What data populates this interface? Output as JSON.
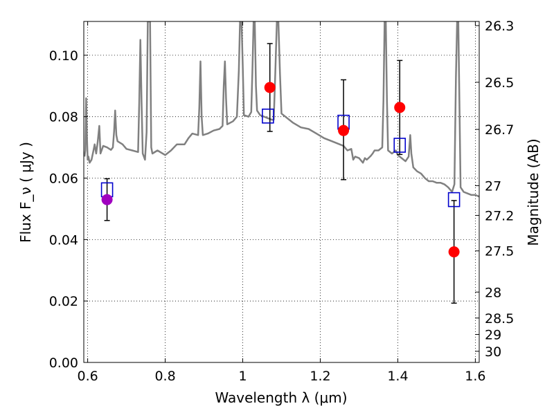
{
  "chart_data": {
    "type": "scatter",
    "xlabel": "Wavelength  λ (μm)",
    "ylabel": "Flux  F_ν  ( μJy )",
    "ylabel_right": "Magnitude (AB)",
    "xlim": [
      0.59,
      1.61
    ],
    "ylim": [
      0.0,
      0.111
    ],
    "grid": true,
    "x_ticks": [
      "0.6",
      "0.8",
      "1",
      "1.2",
      "1.4",
      "1.6"
    ],
    "y_ticks": [
      "0.00",
      "0.02",
      "0.04",
      "0.06",
      "0.08",
      "0.10"
    ],
    "right_ticks": [
      {
        "label": "26.3",
        "mag": 26.3
      },
      {
        "label": "26.5",
        "mag": 26.5
      },
      {
        "label": "26.7",
        "mag": 26.7
      },
      {
        "label": "27",
        "mag": 27.0
      },
      {
        "label": "27.2",
        "mag": 27.2
      },
      {
        "label": "27.5",
        "mag": 27.5
      },
      {
        "label": "28",
        "mag": 28.0
      },
      {
        "label": "28.5",
        "mag": 28.5
      },
      {
        "label": "29",
        "mag": 29.0
      },
      {
        "label": "30",
        "mag": 30.0
      }
    ],
    "colors": {
      "spectrum": "#808080",
      "observed": "#ff0000",
      "observed_first": "#a000c0",
      "model": "#0000cc",
      "errorbar": "#000000"
    },
    "series": [
      {
        "values": [
          {
            "x": 0.65,
            "y": 0.053,
            "yerr_low": 0.0068,
            "yerr_high": 0.0068
          },
          {
            "x": 1.07,
            "y": 0.0895,
            "yerr_low": 0.0143,
            "yerr_high": 0.0143
          },
          {
            "x": 1.26,
            "y": 0.0755,
            "yerr_low": 0.016,
            "yerr_high": 0.0165
          },
          {
            "x": 1.405,
            "y": 0.083,
            "yerr_low": 0.0153,
            "yerr_high": 0.0153
          },
          {
            "x": 1.545,
            "y": 0.036,
            "yerr_low": 0.0167,
            "yerr_high": 0.0167
          }
        ]
      },
      {
        "values": [
          {
            "x": 0.65,
            "y": 0.0562
          },
          {
            "x": 1.065,
            "y": 0.0802
          },
          {
            "x": 1.26,
            "y": 0.0782
          },
          {
            "x": 1.405,
            "y": 0.0707
          },
          {
            "x": 1.545,
            "y": 0.053
          }
        ]
      },
      {
        "values": [
          [
            0.592,
            0.067
          ],
          [
            0.594,
            0.069
          ],
          [
            0.596,
            0.086
          ],
          [
            0.598,
            0.074
          ],
          [
            0.6,
            0.066
          ],
          [
            0.602,
            0.067
          ],
          [
            0.605,
            0.065
          ],
          [
            0.61,
            0.066
          ],
          [
            0.615,
            0.069
          ],
          [
            0.618,
            0.071
          ],
          [
            0.622,
            0.068
          ],
          [
            0.626,
            0.072
          ],
          [
            0.63,
            0.077
          ],
          [
            0.633,
            0.068
          ],
          [
            0.64,
            0.0705
          ],
          [
            0.65,
            0.07
          ],
          [
            0.66,
            0.0692
          ],
          [
            0.665,
            0.07
          ],
          [
            0.668,
            0.075
          ],
          [
            0.671,
            0.082
          ],
          [
            0.674,
            0.074
          ],
          [
            0.677,
            0.072
          ],
          [
            0.69,
            0.071
          ],
          [
            0.7,
            0.0695
          ],
          [
            0.715,
            0.069
          ],
          [
            0.73,
            0.0685
          ],
          [
            0.733,
            0.085
          ],
          [
            0.736,
            0.105
          ],
          [
            0.739,
            0.085
          ],
          [
            0.742,
            0.068
          ],
          [
            0.745,
            0.067
          ],
          [
            0.748,
            0.066
          ],
          [
            0.752,
            0.075
          ],
          [
            0.755,
            0.111
          ],
          [
            0.758,
            0.111
          ],
          [
            0.761,
            0.111
          ],
          [
            0.764,
            0.07
          ],
          [
            0.767,
            0.068
          ],
          [
            0.78,
            0.069
          ],
          [
            0.8,
            0.0675
          ],
          [
            0.815,
            0.069
          ],
          [
            0.83,
            0.071
          ],
          [
            0.85,
            0.071
          ],
          [
            0.86,
            0.073
          ],
          [
            0.87,
            0.0745
          ],
          [
            0.885,
            0.074
          ],
          [
            0.888,
            0.083
          ],
          [
            0.891,
            0.098
          ],
          [
            0.894,
            0.08
          ],
          [
            0.897,
            0.074
          ],
          [
            0.91,
            0.0745
          ],
          [
            0.925,
            0.0755
          ],
          [
            0.94,
            0.076
          ],
          [
            0.948,
            0.077
          ],
          [
            0.951,
            0.09
          ],
          [
            0.954,
            0.098
          ],
          [
            0.957,
            0.086
          ],
          [
            0.96,
            0.0775
          ],
          [
            0.975,
            0.0785
          ],
          [
            0.985,
            0.08
          ],
          [
            0.99,
            0.095
          ],
          [
            0.993,
            0.111
          ],
          [
            0.997,
            0.111
          ],
          [
            1.0,
            0.097
          ],
          [
            1.003,
            0.0805
          ],
          [
            1.015,
            0.08
          ],
          [
            1.022,
            0.0815
          ],
          [
            1.025,
            0.095
          ],
          [
            1.028,
            0.111
          ],
          [
            1.031,
            0.111
          ],
          [
            1.034,
            0.09
          ],
          [
            1.037,
            0.082
          ],
          [
            1.045,
            0.0805
          ],
          [
            1.055,
            0.08
          ],
          [
            1.065,
            0.0795
          ],
          [
            1.075,
            0.079
          ],
          [
            1.08,
            0.079
          ],
          [
            1.084,
            0.094
          ],
          [
            1.088,
            0.111
          ],
          [
            1.092,
            0.111
          ],
          [
            1.096,
            0.094
          ],
          [
            1.1,
            0.081
          ],
          [
            1.11,
            0.08
          ],
          [
            1.13,
            0.078
          ],
          [
            1.15,
            0.0765
          ],
          [
            1.17,
            0.076
          ],
          [
            1.19,
            0.0745
          ],
          [
            1.21,
            0.073
          ],
          [
            1.23,
            0.072
          ],
          [
            1.25,
            0.071
          ],
          [
            1.26,
            0.0705
          ],
          [
            1.27,
            0.069
          ],
          [
            1.28,
            0.0695
          ],
          [
            1.285,
            0.066
          ],
          [
            1.29,
            0.067
          ],
          [
            1.3,
            0.0665
          ],
          [
            1.31,
            0.065
          ],
          [
            1.315,
            0.0665
          ],
          [
            1.32,
            0.066
          ],
          [
            1.33,
            0.0672
          ],
          [
            1.335,
            0.068
          ],
          [
            1.34,
            0.069
          ],
          [
            1.35,
            0.069
          ],
          [
            1.36,
            0.07
          ],
          [
            1.363,
            0.085
          ],
          [
            1.366,
            0.111
          ],
          [
            1.369,
            0.111
          ],
          [
            1.372,
            0.085
          ],
          [
            1.375,
            0.069
          ],
          [
            1.385,
            0.068
          ],
          [
            1.395,
            0.069
          ],
          [
            1.4,
            0.0675
          ],
          [
            1.41,
            0.0665
          ],
          [
            1.42,
            0.0655
          ],
          [
            1.428,
            0.067
          ],
          [
            1.432,
            0.074
          ],
          [
            1.435,
            0.068
          ],
          [
            1.44,
            0.0635
          ],
          [
            1.45,
            0.0622
          ],
          [
            1.46,
            0.0615
          ],
          [
            1.47,
            0.06
          ],
          [
            1.48,
            0.059
          ],
          [
            1.49,
            0.059
          ],
          [
            1.5,
            0.0585
          ],
          [
            1.51,
            0.0585
          ],
          [
            1.52,
            0.058
          ],
          [
            1.53,
            0.057
          ],
          [
            1.54,
            0.0555
          ],
          [
            1.546,
            0.058
          ],
          [
            1.55,
            0.093
          ],
          [
            1.553,
            0.111
          ],
          [
            1.556,
            0.111
          ],
          [
            1.559,
            0.085
          ],
          [
            1.562,
            0.057
          ],
          [
            1.57,
            0.0555
          ],
          [
            1.58,
            0.055
          ],
          [
            1.59,
            0.0545
          ],
          [
            1.6,
            0.0545
          ],
          [
            1.61,
            0.054
          ]
        ]
      }
    ]
  }
}
